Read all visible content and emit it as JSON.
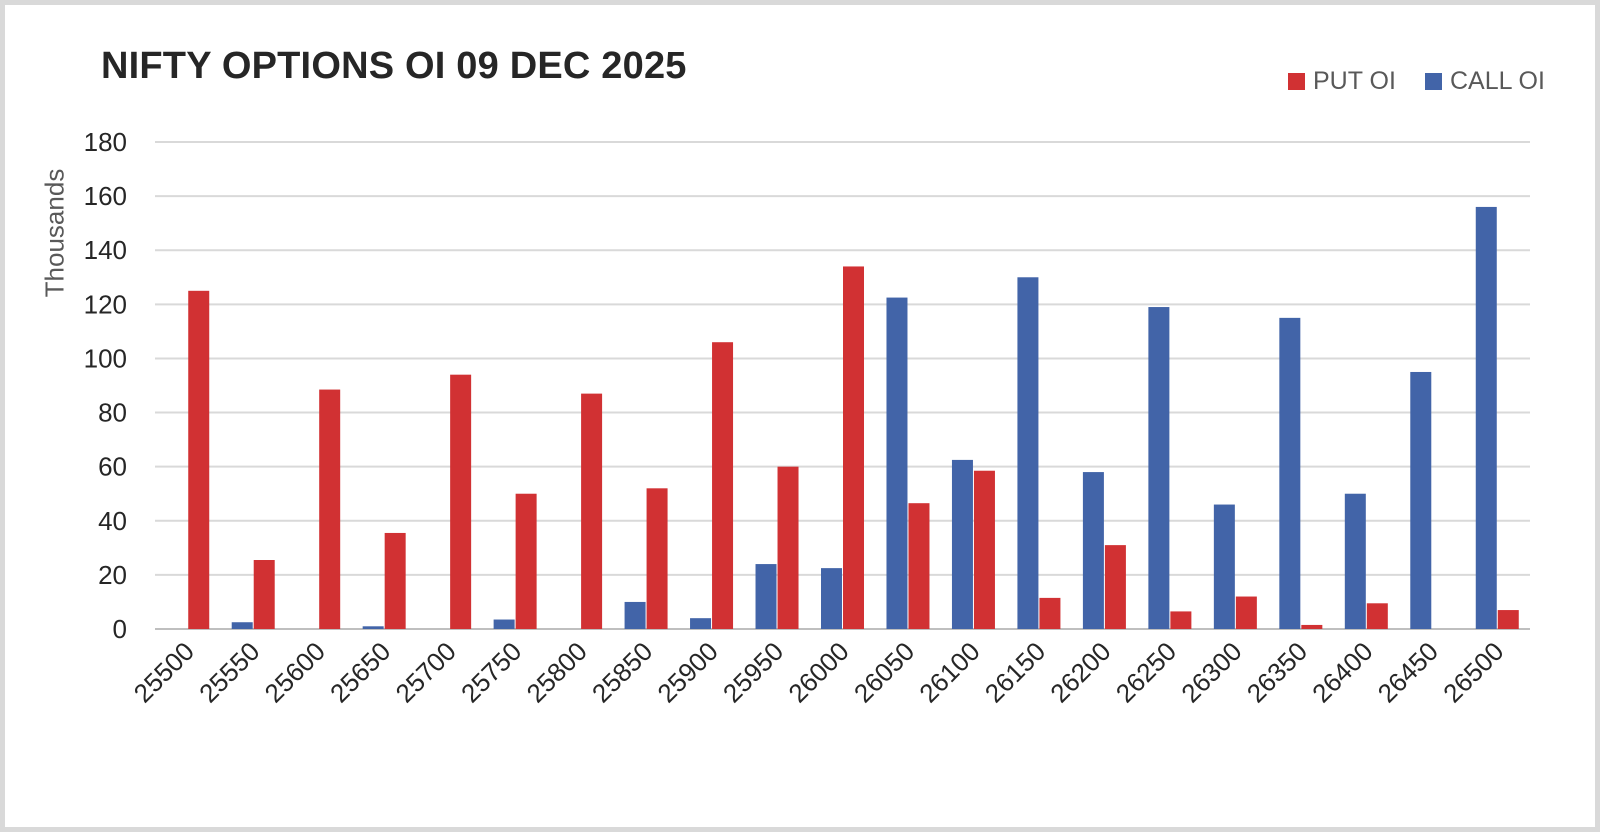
{
  "chart_data": {
    "type": "bar",
    "title": "NIFTY OPTIONS OI 09 DEC 2025",
    "ylabel": "Thousands",
    "xlabel": "",
    "ylim": [
      0,
      180
    ],
    "yticks": [
      0,
      20,
      40,
      60,
      80,
      100,
      120,
      140,
      160,
      180
    ],
    "grid": true,
    "legend_position": "top-right",
    "categories": [
      "25500",
      "25550",
      "25600",
      "25650",
      "25700",
      "25750",
      "25800",
      "25850",
      "25900",
      "25950",
      "26000",
      "26050",
      "26100",
      "26150",
      "26200",
      "26250",
      "26300",
      "26350",
      "26400",
      "26450",
      "26500"
    ],
    "series": [
      {
        "name": "CALL OI",
        "color": "#4264a8",
        "values": [
          0,
          2.5,
          0,
          1,
          0,
          3.5,
          0,
          10,
          4,
          24,
          22.5,
          122.5,
          62.5,
          130,
          58,
          119,
          46,
          115,
          50,
          95,
          156
        ]
      },
      {
        "name": "PUT OI",
        "color": "#d13133",
        "values": [
          125,
          25.5,
          88.5,
          35.5,
          94,
          50,
          87,
          52,
          106,
          60,
          134,
          46.5,
          58.5,
          11.5,
          31,
          6.5,
          12,
          1.5,
          9.5,
          0,
          7
        ]
      }
    ]
  }
}
